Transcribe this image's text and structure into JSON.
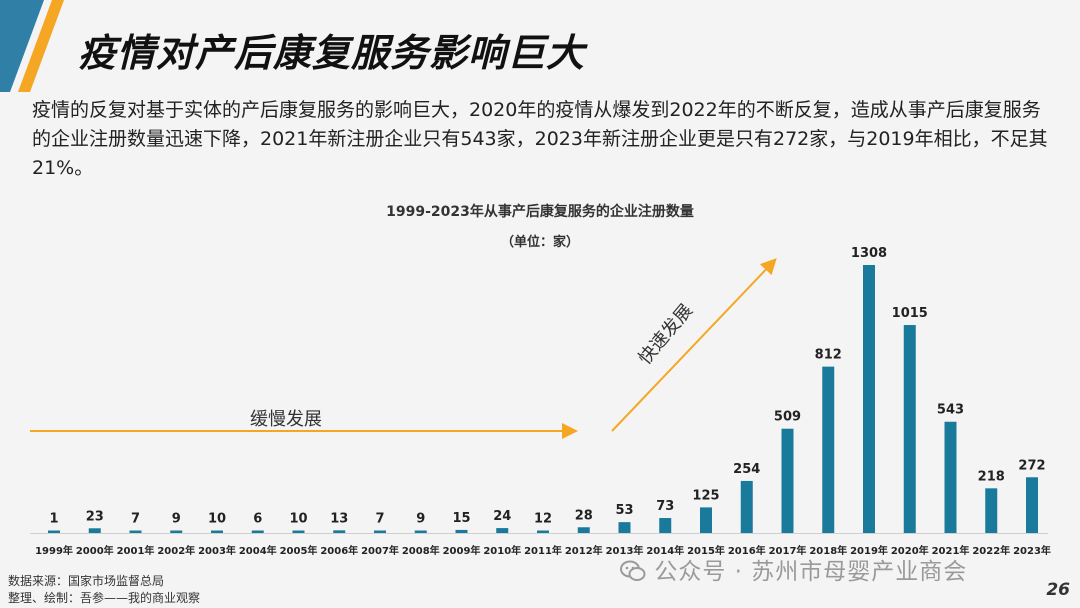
{
  "header": {
    "title": "疫情对产后康复服务影响巨大",
    "accent_color": "#f5a623",
    "stripe_color": "#2f7fa6"
  },
  "summary": {
    "text": "疫情的反复对基于实体的产后康复服务的影响巨大，2020年的疫情从爆发到2022年的不断反复，造成从事产后康复服务的企业注册数量迅速下降，2021年新注册企业只有543家，2023年新注册企业更是只有272家，与2019年相比，不足其21%。"
  },
  "chart_data": {
    "type": "bar",
    "title": "1999-2023年从事产后康复服务的企业注册数量",
    "subtitle": "（单位：家）",
    "categories": [
      "1999年",
      "2000年",
      "2001年",
      "2002年",
      "2003年",
      "2004年",
      "2005年",
      "2006年",
      "2007年",
      "2008年",
      "2009年",
      "2010年",
      "2011年",
      "2012年",
      "2013年",
      "2014年",
      "2015年",
      "2016年",
      "2017年",
      "2018年",
      "2019年",
      "2020年",
      "2021年",
      "2022年",
      "2023年"
    ],
    "values": [
      1,
      23,
      7,
      9,
      10,
      6,
      10,
      13,
      7,
      9,
      15,
      24,
      12,
      28,
      53,
      73,
      125,
      254,
      509,
      812,
      1308,
      1015,
      543,
      218,
      272
    ],
    "ylim": [
      0,
      1308
    ],
    "bar_color": "#1a7a9c",
    "annotations": {
      "slow": "缓慢发展",
      "fast": "快速发展"
    }
  },
  "footer": {
    "source": "数据来源：国家市场监督总局",
    "credit": "整理、绘制：吾参——我的商业观察"
  },
  "watermark": {
    "text": "公众号 · 苏州市母婴产业商会",
    "icon": "wechat-icon"
  },
  "page": {
    "number": "26"
  }
}
